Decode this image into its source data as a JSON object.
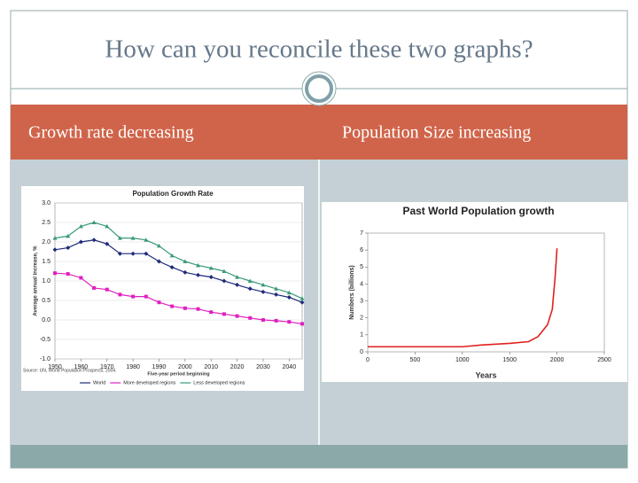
{
  "title": "How can you reconcile these two graphs?",
  "headers": [
    "Growth rate decreasing",
    "Population Size increasing"
  ],
  "chart_data": [
    {
      "type": "line",
      "title": "Population Growth Rate",
      "x_label": "Five-year period beginning",
      "y_label": "Average annual increase, %",
      "source": "Source: UN, World Population Prospects, 2004.",
      "x": [
        1950,
        1955,
        1960,
        1965,
        1970,
        1975,
        1980,
        1985,
        1990,
        1995,
        2000,
        2005,
        2010,
        2015,
        2020,
        2025,
        2030,
        2035,
        2040,
        2045
      ],
      "xlim": [
        1950,
        2045
      ],
      "xticks": [
        1950,
        1960,
        1970,
        1980,
        1990,
        2000,
        2010,
        2020,
        2030,
        2040
      ],
      "ylim": [
        -1,
        3
      ],
      "yticks": [
        {
          "value": 3,
          "label": "3.0"
        },
        {
          "value": 2.5,
          "label": "2.5"
        },
        {
          "value": 2,
          "label": "2.0"
        },
        {
          "value": 1.5,
          "label": "1.5"
        },
        {
          "value": 1,
          "label": "1.0"
        },
        {
          "value": 0.5,
          "label": "0.5"
        },
        {
          "value": 0,
          "label": "0.0"
        },
        {
          "value": -0.5,
          "label": "-0.5"
        },
        {
          "value": -1,
          "label": "-1.0"
        }
      ],
      "grid": true,
      "legend": "bottom",
      "series": [
        {
          "name": "World",
          "color": "#1f2a7a",
          "marker": "diamond",
          "values": [
            1.8,
            1.85,
            2.0,
            2.05,
            1.95,
            1.7,
            1.7,
            1.7,
            1.5,
            1.35,
            1.22,
            1.15,
            1.1,
            1.0,
            0.9,
            0.8,
            0.72,
            0.65,
            0.58,
            0.45
          ]
        },
        {
          "name": "More developed regions",
          "color": "#e020c0",
          "marker": "square",
          "values": [
            1.2,
            1.18,
            1.08,
            0.82,
            0.78,
            0.65,
            0.6,
            0.6,
            0.45,
            0.35,
            0.3,
            0.28,
            0.2,
            0.15,
            0.1,
            0.05,
            0.0,
            -0.02,
            -0.05,
            -0.1
          ]
        },
        {
          "name": "Less developed regions",
          "color": "#3a9a7a",
          "marker": "triangle",
          "values": [
            2.1,
            2.15,
            2.4,
            2.5,
            2.4,
            2.1,
            2.1,
            2.05,
            1.9,
            1.65,
            1.5,
            1.4,
            1.33,
            1.25,
            1.1,
            1.0,
            0.9,
            0.8,
            0.7,
            0.55
          ]
        }
      ]
    },
    {
      "type": "line",
      "title": "Past World Population growth",
      "x_label": "Years",
      "y_label": "Numbers (billions)",
      "x": [
        0,
        500,
        1000,
        1200,
        1500,
        1700,
        1800,
        1900,
        1950,
        1980,
        2000
      ],
      "xlim": [
        0,
        2500
      ],
      "xticks": [
        0,
        500,
        1000,
        1500,
        2000,
        2500
      ],
      "ylim": [
        0,
        7
      ],
      "yticks": [
        0,
        1,
        2,
        3,
        4,
        5,
        6,
        7
      ],
      "grid": false,
      "series": [
        {
          "name": null,
          "color": "#e02020",
          "marker": null,
          "values": [
            0.3,
            0.3,
            0.3,
            0.4,
            0.5,
            0.6,
            0.9,
            1.6,
            2.5,
            4.4,
            6.1
          ]
        }
      ]
    }
  ]
}
